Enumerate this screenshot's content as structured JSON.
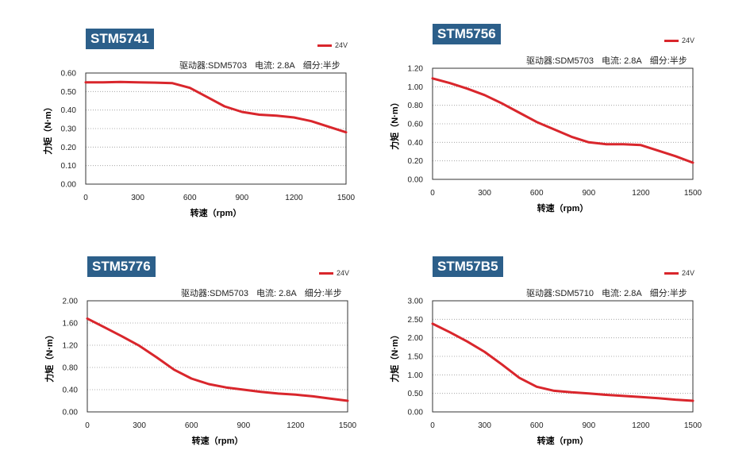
{
  "legend_label": "24V",
  "line_color": "#d9262c",
  "badge_color": "#2c5f8a",
  "chart_data": [
    {
      "type": "line",
      "title": "STM5741",
      "driver": "驱动器:SDM5703",
      "current": "电流: 2.8A",
      "microstep": "细分:半步",
      "xlabel": "转速（rpm）",
      "ylabel": "力矩（N·m）",
      "xlim": [
        0,
        1500
      ],
      "ylim": [
        0,
        0.6
      ],
      "xticks": [
        "0",
        "300",
        "600",
        "900",
        "1200",
        "1500"
      ],
      "yticks": [
        "0.00",
        "0.10",
        "0.20",
        "0.30",
        "0.40",
        "0.50",
        "0.60"
      ],
      "series": [
        {
          "name": "24V",
          "x": [
            0,
            100,
            200,
            300,
            400,
            500,
            600,
            700,
            800,
            900,
            1000,
            1100,
            1200,
            1300,
            1400,
            1500
          ],
          "y": [
            0.55,
            0.55,
            0.552,
            0.55,
            0.548,
            0.545,
            0.52,
            0.47,
            0.42,
            0.39,
            0.375,
            0.37,
            0.36,
            0.34,
            0.31,
            0.28
          ]
        }
      ]
    },
    {
      "type": "line",
      "title": "STM5756",
      "driver": "驱动器:SDM5703",
      "current": "电流: 2.8A",
      "microstep": "细分:半步",
      "xlabel": "转速（rpm）",
      "ylabel": "力矩（N·m）",
      "xlim": [
        0,
        1500
      ],
      "ylim": [
        0,
        1.2
      ],
      "xticks": [
        "0",
        "300",
        "600",
        "900",
        "1200",
        "1500"
      ],
      "yticks": [
        "0.00",
        "0.20",
        "0.40",
        "0.60",
        "0.80",
        "1.00",
        "1.20"
      ],
      "series": [
        {
          "name": "24V",
          "x": [
            0,
            100,
            200,
            300,
            400,
            500,
            600,
            700,
            800,
            900,
            1000,
            1100,
            1200,
            1300,
            1400,
            1500
          ],
          "y": [
            1.09,
            1.04,
            0.98,
            0.91,
            0.82,
            0.72,
            0.62,
            0.54,
            0.46,
            0.4,
            0.38,
            0.38,
            0.37,
            0.31,
            0.25,
            0.18
          ]
        }
      ]
    },
    {
      "type": "line",
      "title": "STM5776",
      "driver": "驱动器:SDM5703",
      "current": "电流: 2.8A",
      "microstep": "细分:半步",
      "xlabel": "转速（rpm）",
      "ylabel": "力矩（N·m）",
      "xlim": [
        0,
        1500
      ],
      "ylim": [
        0,
        2.0
      ],
      "xticks": [
        "0",
        "300",
        "600",
        "900",
        "1200",
        "1500"
      ],
      "yticks": [
        "0.00",
        "0.40",
        "0.80",
        "1.20",
        "1.60",
        "2.00"
      ],
      "series": [
        {
          "name": "24V",
          "x": [
            0,
            100,
            200,
            300,
            400,
            500,
            600,
            700,
            800,
            900,
            1000,
            1100,
            1200,
            1300,
            1400,
            1500
          ],
          "y": [
            1.68,
            1.52,
            1.36,
            1.19,
            0.98,
            0.76,
            0.6,
            0.5,
            0.44,
            0.4,
            0.36,
            0.33,
            0.31,
            0.28,
            0.24,
            0.2
          ]
        }
      ]
    },
    {
      "type": "line",
      "title": "STM57B5",
      "driver": "驱动器:SDM5710",
      "current": "电流: 2.8A",
      "microstep": "细分:半步",
      "xlabel": "转速（rpm）",
      "ylabel": "力矩（N·m）",
      "xlim": [
        0,
        1500
      ],
      "ylim": [
        0,
        3.0
      ],
      "xticks": [
        "0",
        "300",
        "600",
        "900",
        "1200",
        "1500"
      ],
      "yticks": [
        "0.00",
        "0.50",
        "1.00",
        "1.50",
        "2.00",
        "2.50",
        "3.00"
      ],
      "series": [
        {
          "name": "24V",
          "x": [
            0,
            100,
            200,
            300,
            400,
            500,
            600,
            700,
            800,
            900,
            1000,
            1100,
            1200,
            1300,
            1400,
            1500
          ],
          "y": [
            2.38,
            2.15,
            1.9,
            1.62,
            1.28,
            0.92,
            0.68,
            0.57,
            0.53,
            0.5,
            0.46,
            0.43,
            0.4,
            0.37,
            0.33,
            0.3
          ]
        }
      ]
    }
  ]
}
